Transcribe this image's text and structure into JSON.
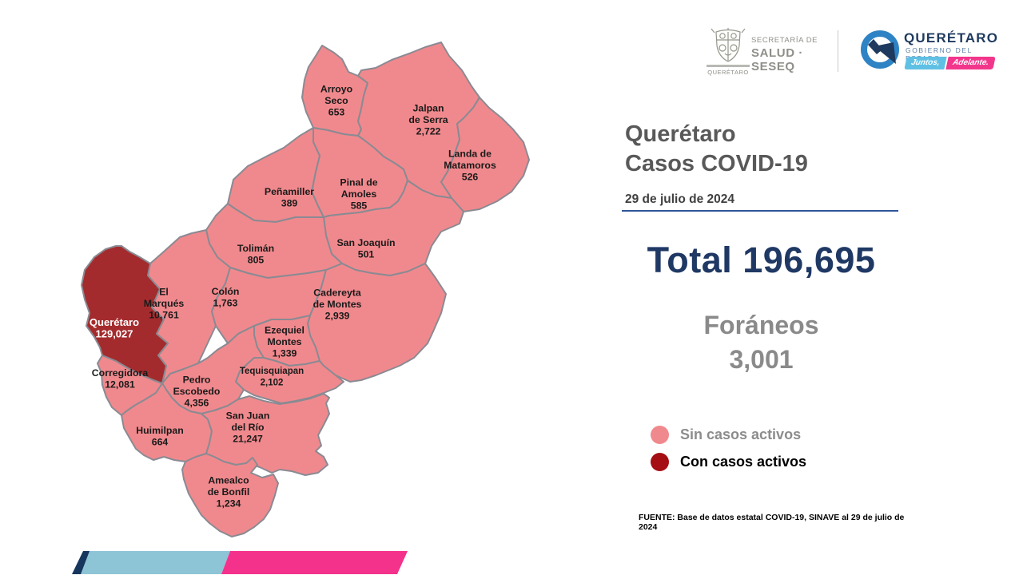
{
  "header": {
    "seseq": {
      "shield_icon": "coat-of-arms-icon",
      "line1": "SECRETARÍA DE",
      "line2": "SALUD · SESEQ",
      "shield_caption": "QUERÉTARO"
    },
    "qro": {
      "q_icon": "q-logo-icon",
      "wordmark": "QUERÉTARO",
      "subtitle": "GOBIERNO DEL ESTADO",
      "badge_left": "Juntos,",
      "badge_right": "Adelante.",
      "badge_left_color": "#5fc0e4",
      "badge_right_color": "#f2368c",
      "ring_color": "#2e83c5",
      "arrow_color": "#1e3a5f"
    }
  },
  "panel": {
    "title_line1": "Querétaro",
    "title_line2": "Casos COVID-19",
    "date": "29 de julio de 2024",
    "total_label": "Total",
    "total_value": "196,695",
    "foraneos_label": "Foráneos",
    "foraneos_value": "3,001",
    "legend": [
      {
        "label": "Sin casos activos",
        "color": "#f0898d",
        "text_color": "#8c8c8c"
      },
      {
        "label": "Con casos activos",
        "color": "#a50e13",
        "text_color": "#000000"
      }
    ],
    "source": "FUENTE: Base de datos estatal COVID-19, SINAVE al 29 de julio de 2024"
  },
  "map": {
    "colors": {
      "no_active": "#f0898d",
      "active": "#a42b2d",
      "border": "#8a8a93",
      "label": "#1a1a1a",
      "label_on_active": "#ffffff"
    },
    "municipalities": [
      {
        "id": "arroyo-seco",
        "name": "Arroyo Seco",
        "name_lines": [
          "Arroyo",
          "Seco"
        ],
        "cases": "653",
        "status": "no_active"
      },
      {
        "id": "jalpan-de-serra",
        "name": "Jalpan de Serra",
        "name_lines": [
          "Jalpan",
          "de Serra"
        ],
        "cases": "2,722",
        "status": "no_active"
      },
      {
        "id": "landa-de-matamoros",
        "name": "Landa de Matamoros",
        "name_lines": [
          "Landa de",
          "Matamoros"
        ],
        "cases": "526",
        "status": "no_active"
      },
      {
        "id": "pinal-de-amoles",
        "name": "Pinal de Amoles",
        "name_lines": [
          "Pinal de",
          "Amoles"
        ],
        "cases": "585",
        "status": "no_active"
      },
      {
        "id": "penamiller",
        "name": "Peñamiller",
        "name_lines": [
          "Peñamiller"
        ],
        "cases": "389",
        "status": "no_active"
      },
      {
        "id": "san-joaquin",
        "name": "San Joaquín",
        "name_lines": [
          "San Joaquín"
        ],
        "cases": "501",
        "status": "no_active"
      },
      {
        "id": "toliman",
        "name": "Tolimán",
        "name_lines": [
          "Tolimán"
        ],
        "cases": "805",
        "status": "no_active"
      },
      {
        "id": "el-marques",
        "name": "El Marqués",
        "name_lines": [
          "El",
          "Marqués"
        ],
        "cases": "10,761",
        "status": "no_active"
      },
      {
        "id": "colon",
        "name": "Colón",
        "name_lines": [
          "Colón"
        ],
        "cases": "1,763",
        "status": "no_active"
      },
      {
        "id": "cadereyta-de-montes",
        "name": "Cadereyta de Montes",
        "name_lines": [
          "Cadereyta",
          "de Montes"
        ],
        "cases": "2,939",
        "status": "no_active"
      },
      {
        "id": "ezequiel-montes",
        "name": "Ezequiel Montes",
        "name_lines": [
          "Ezequiel",
          "Montes"
        ],
        "cases": "1,339",
        "status": "no_active"
      },
      {
        "id": "tequisquiapan",
        "name": "Tequisquiapan",
        "name_lines": [
          "Tequisquiapan"
        ],
        "cases": "2,102",
        "status": "no_active"
      },
      {
        "id": "pedro-escobedo",
        "name": "Pedro Escobedo",
        "name_lines": [
          "Pedro",
          "Escobedo"
        ],
        "cases": "4,356",
        "status": "no_active"
      },
      {
        "id": "corregidora",
        "name": "Corregidora",
        "name_lines": [
          "Corregidora"
        ],
        "cases": "12,081",
        "status": "no_active"
      },
      {
        "id": "huimilpan",
        "name": "Huimilpan",
        "name_lines": [
          "Huimilpan"
        ],
        "cases": "664",
        "status": "no_active"
      },
      {
        "id": "san-juan-del-rio",
        "name": "San Juan del Río",
        "name_lines": [
          "San Juan",
          "del Río"
        ],
        "cases": "21,247",
        "status": "no_active"
      },
      {
        "id": "amealco-de-bonfil",
        "name": "Amealco de Bonfil",
        "name_lines": [
          "Amealco",
          "de Bonfil"
        ],
        "cases": "1,234",
        "status": "no_active"
      },
      {
        "id": "queretaro",
        "name": "Querétaro",
        "name_lines": [
          "Querétaro"
        ],
        "cases": "129,027",
        "status": "active"
      }
    ]
  },
  "footer_bar": {
    "segments": [
      {
        "name": "navy",
        "color": "#16365d"
      },
      {
        "name": "blue",
        "color": "#8ec5d6"
      },
      {
        "name": "pink",
        "color": "#f4328c"
      }
    ]
  }
}
